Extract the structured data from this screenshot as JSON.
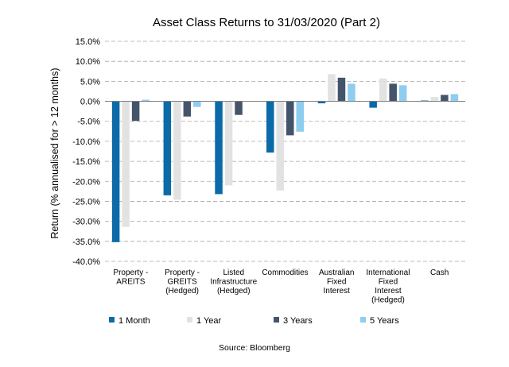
{
  "chart_data": {
    "type": "bar",
    "title": "Asset Class Returns to 31/03/2020 (Part 2)",
    "xlabel": "",
    "ylabel": "Return (% annualised for > 12 months)",
    "ylim": [
      -40,
      15
    ],
    "yticks": [
      "15.0%",
      "10.0%",
      "5.0%",
      "0.0%",
      "-5.0%",
      "-10.0%",
      "-15.0%",
      "-20.0%",
      "-25.0%",
      "-30.0%",
      "-35.0%",
      "-40.0%"
    ],
    "ytick_values": [
      15,
      10,
      5,
      0,
      -5,
      -10,
      -15,
      -20,
      -25,
      -30,
      -35,
      -40
    ],
    "grid": "horizontal dashed",
    "legend_position": "bottom",
    "categories": [
      [
        "Property -",
        "AREITS"
      ],
      [
        "Property -",
        "GREITS",
        "(Hedged)"
      ],
      [
        "Listed",
        "Infrastructure",
        "(Hedged)"
      ],
      [
        "Commodities"
      ],
      [
        "Australian",
        "Fixed",
        "Interest"
      ],
      [
        "International",
        "Fixed",
        "Interest",
        "(Hedged)"
      ],
      [
        "Cash"
      ]
    ],
    "series": [
      {
        "name": "1 Month",
        "color": "#0b6aa8",
        "values": [
          -35.2,
          -23.5,
          -23.2,
          -12.8,
          -0.5,
          -1.6,
          0.2
        ]
      },
      {
        "name": "1 Year",
        "color": "#e2e2e2",
        "values": [
          -31.4,
          -24.6,
          -21.0,
          -22.3,
          6.8,
          5.7,
          1.1
        ]
      },
      {
        "name": "3 Years",
        "color": "#44546a",
        "values": [
          -4.9,
          -3.8,
          -3.4,
          -8.5,
          5.9,
          4.4,
          1.6
        ]
      },
      {
        "name": "5 Years",
        "color": "#8fcdf0",
        "values": [
          0.4,
          -1.4,
          0,
          -7.6,
          4.4,
          4.0,
          1.8
        ]
      }
    ]
  },
  "source_note": "Source: Bloomberg"
}
